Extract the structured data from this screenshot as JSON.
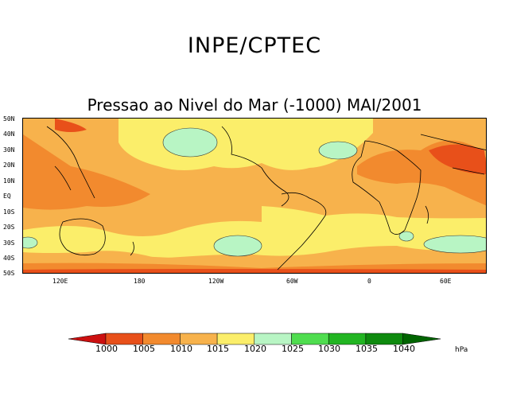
{
  "header": {
    "agency": "INPE/CPTEC",
    "subtitle": "Pressao ao Nivel do Mar (-1000) MAI/2001"
  },
  "axes": {
    "lat_ticks": [
      "50N",
      "40N",
      "30N",
      "20N",
      "10N",
      "EQ",
      "10S",
      "20S",
      "30S",
      "40S",
      "50S"
    ],
    "lon_ticks": [
      "120E",
      "180",
      "120W",
      "60W",
      "0",
      "60E"
    ]
  },
  "legend": {
    "levels": [
      "1000",
      "1005",
      "1010",
      "1015",
      "1020",
      "1025",
      "1030",
      "1035",
      "1040"
    ],
    "unit": "hPa",
    "colors": [
      "#cc1010",
      "#e8501a",
      "#f28a2e",
      "#f7b24c",
      "#fbee6a",
      "#b8f5c4",
      "#4fdd4f",
      "#22b522",
      "#0e8a0e",
      "#006400"
    ]
  },
  "map": {
    "colors": {
      "c1005": "#e8501a",
      "c1010": "#f28a2e",
      "c1015": "#f7b24c",
      "c1020": "#fbee6a",
      "c1025": "#b8f5c4"
    }
  }
}
